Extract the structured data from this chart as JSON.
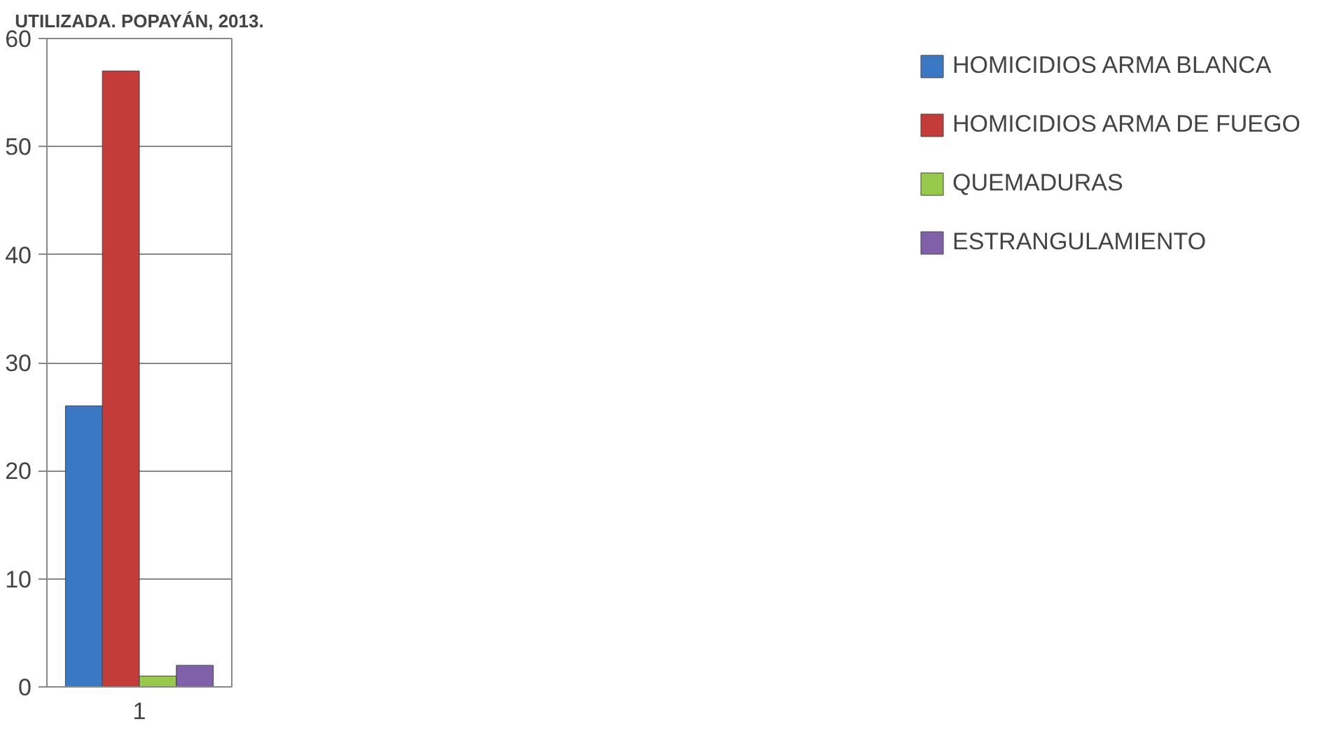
{
  "chart_data": {
    "type": "bar",
    "title": "UTILIZADA. POPAYÁN, 2013.",
    "categories": [
      "1"
    ],
    "ylim": [
      0,
      60
    ],
    "yticks": [
      0,
      10,
      20,
      30,
      40,
      50,
      60
    ],
    "grid": "y",
    "legend": "right",
    "series": [
      {
        "name": "HOMICIDIOS ARMA BLANCA",
        "color": "#3a78c4",
        "values": [
          26
        ]
      },
      {
        "name": "HOMICIDIOS ARMA DE FUEGO",
        "color": "#c43c3a",
        "values": [
          57
        ]
      },
      {
        "name": "QUEMADURAS",
        "color": "#98c94a",
        "values": [
          1
        ]
      },
      {
        "name": "ESTRANGULAMIENTO",
        "color": "#8060a8",
        "values": [
          2
        ]
      }
    ]
  }
}
